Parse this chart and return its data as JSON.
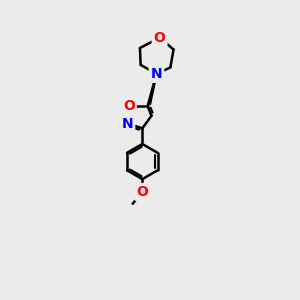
{
  "background_color": "#ebebeb",
  "bond_color": "#000000",
  "bond_width": 1.8,
  "atom_colors": {
    "O": "#ff0000",
    "N": "#0000ff",
    "C": "#000000"
  },
  "font_size_atom": 10,
  "font_size_small": 9,
  "xlim": [
    0,
    10
  ],
  "ylim": [
    0,
    14
  ]
}
